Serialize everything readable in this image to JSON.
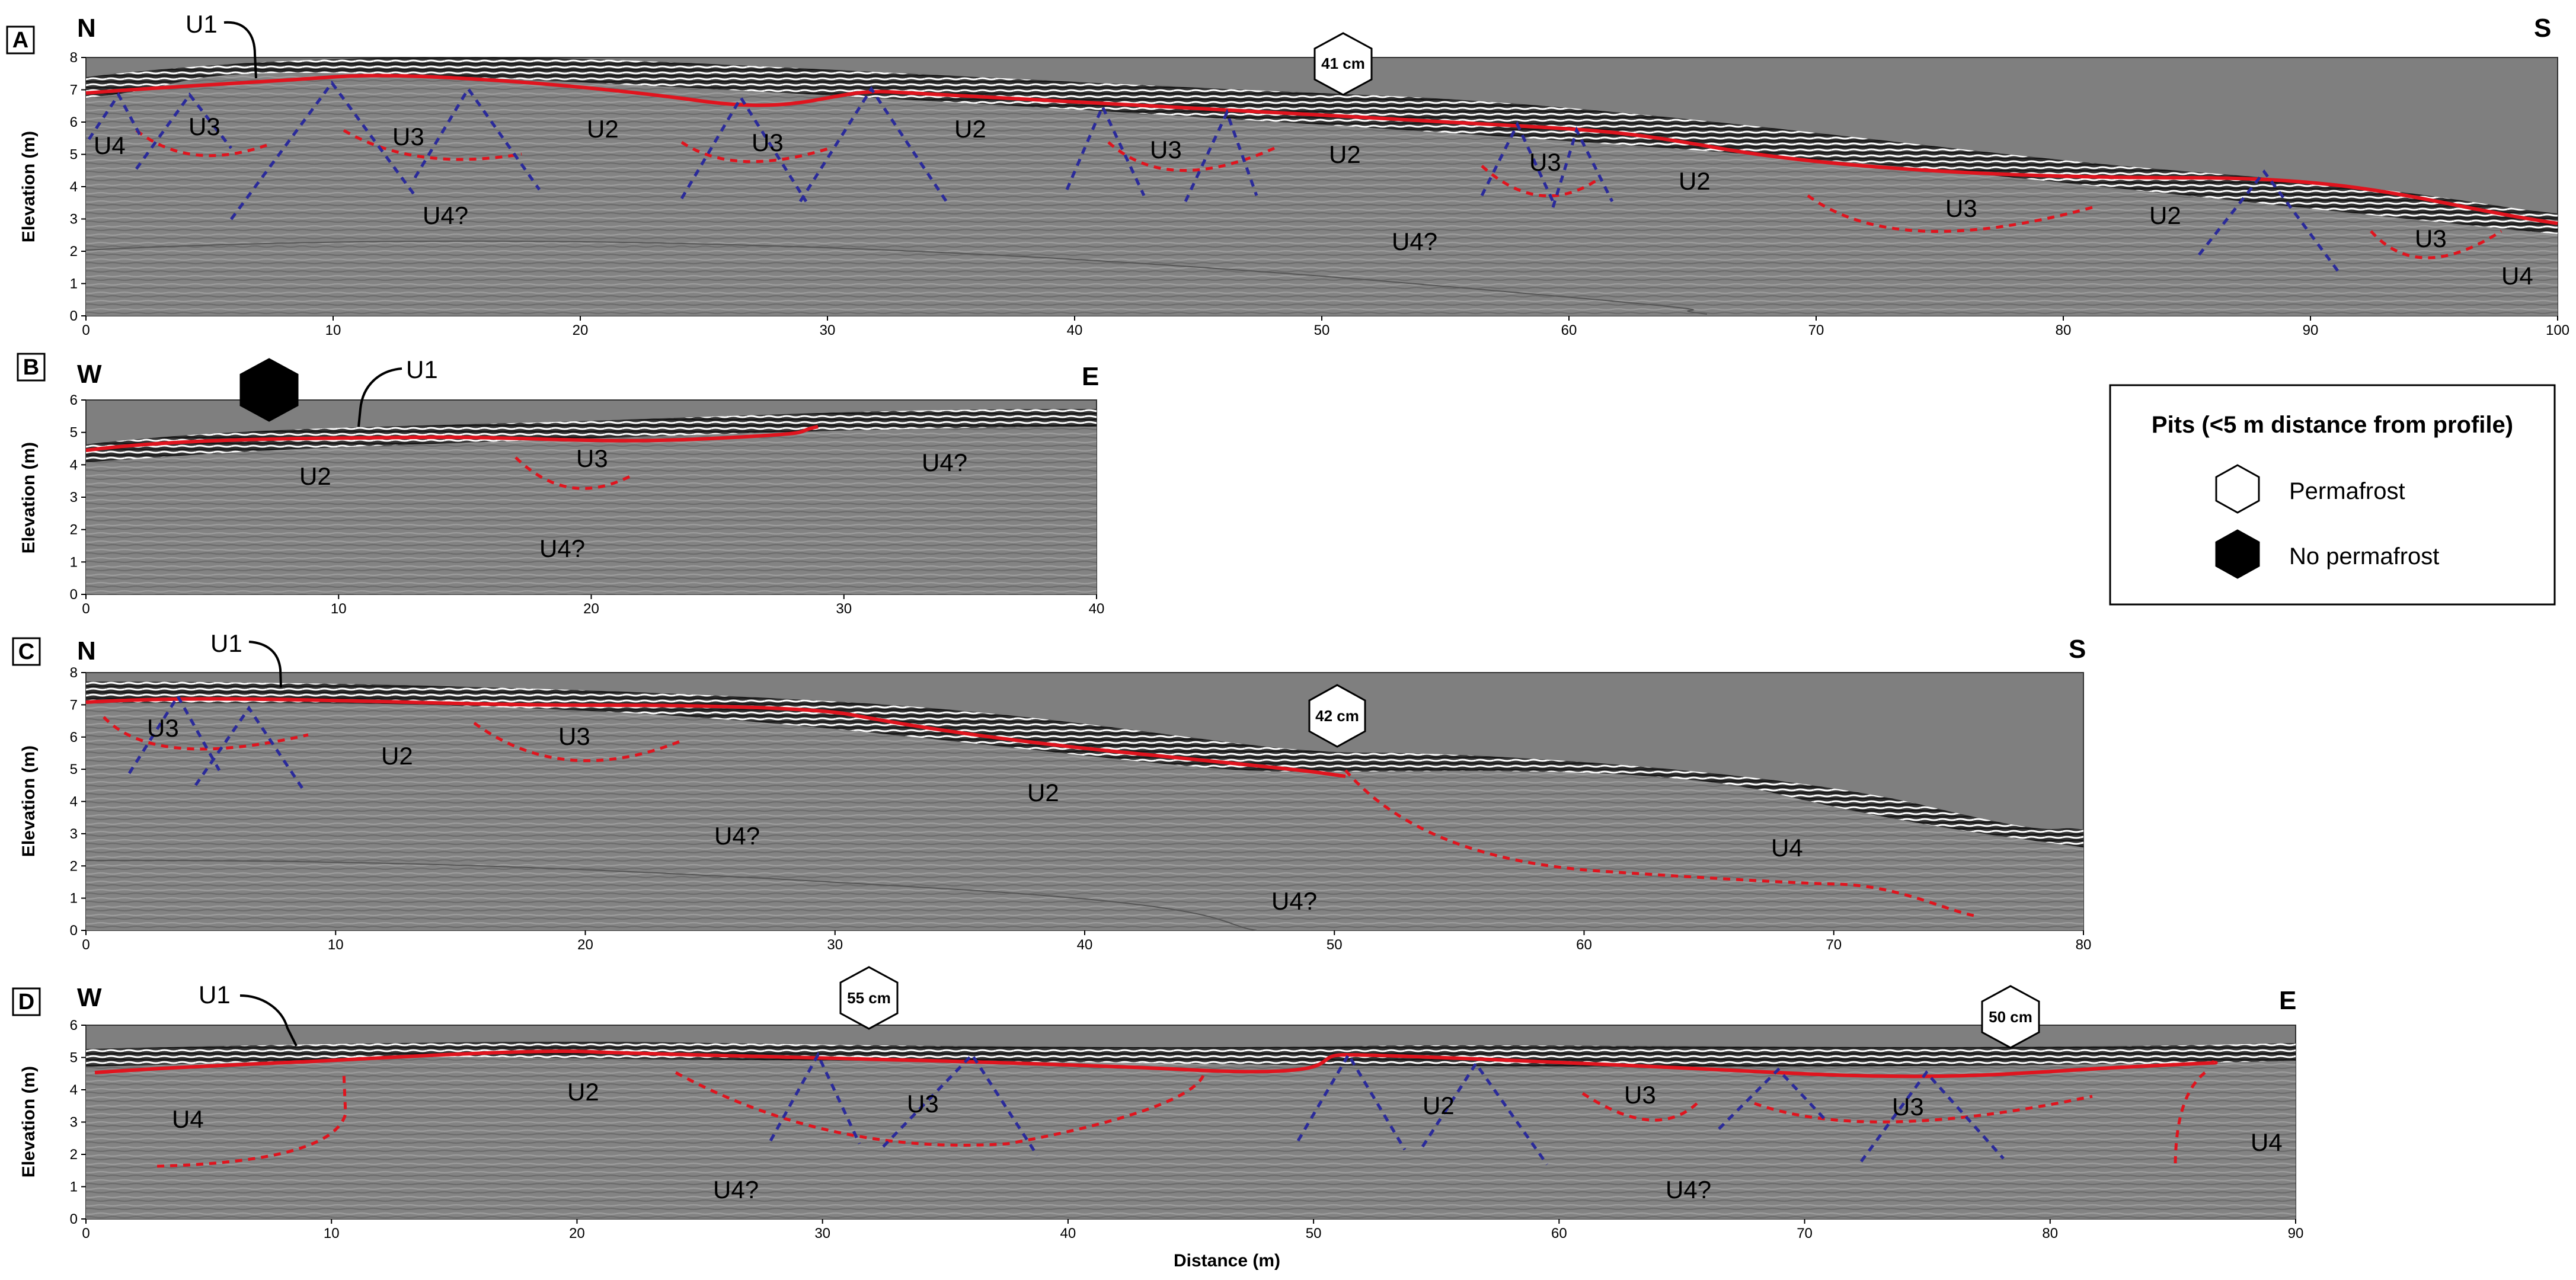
{
  "panels": [
    {
      "letter": "A",
      "dir_left": "N",
      "dir_right": "S",
      "ylabel": "Elevation (m)",
      "xticks": [
        "0",
        "10",
        "20",
        "30",
        "40",
        "50",
        "60",
        "70",
        "80",
        "90",
        "100"
      ],
      "yticks": [
        "0",
        "1",
        "2",
        "3",
        "4",
        "5",
        "6",
        "7",
        "8"
      ],
      "units": [
        {
          "t": "U4"
        },
        {
          "t": "U3"
        },
        {
          "t": "U3"
        },
        {
          "t": "U2"
        },
        {
          "t": "U3"
        },
        {
          "t": "U2"
        },
        {
          "t": "U3"
        },
        {
          "t": "U2"
        },
        {
          "t": "U3"
        },
        {
          "t": "U2"
        },
        {
          "t": "U3"
        },
        {
          "t": "U2"
        },
        {
          "t": "U3"
        },
        {
          "t": "U4"
        },
        {
          "t": "U4?"
        },
        {
          "t": "U4?"
        }
      ],
      "u1": "U1",
      "pit": {
        "label": "41 cm",
        "type": "Permafrost"
      }
    },
    {
      "letter": "B",
      "dir_left": "W",
      "dir_right": "E",
      "ylabel": "Elevation (m)",
      "xticks": [
        "0",
        "10",
        "20",
        "30",
        "40"
      ],
      "yticks": [
        "0",
        "1",
        "2",
        "3",
        "4",
        "5",
        "6"
      ],
      "units": [
        {
          "t": "U2"
        },
        {
          "t": "U3"
        },
        {
          "t": "U4?"
        },
        {
          "t": "U4?"
        }
      ],
      "u1": "U1",
      "pit": {
        "label": "",
        "type": "No permafrost"
      }
    },
    {
      "letter": "C",
      "dir_left": "N",
      "dir_right": "S",
      "ylabel": "Elevation (m)",
      "xticks": [
        "0",
        "10",
        "20",
        "30",
        "40",
        "50",
        "60",
        "70",
        "80"
      ],
      "yticks": [
        "0",
        "1",
        "2",
        "3",
        "4",
        "5",
        "6",
        "7",
        "8"
      ],
      "units": [
        {
          "t": "U3"
        },
        {
          "t": "U2"
        },
        {
          "t": "U3"
        },
        {
          "t": "U4?"
        },
        {
          "t": "U2"
        },
        {
          "t": "U4"
        },
        {
          "t": "U4?"
        }
      ],
      "u1": "U1",
      "pit": {
        "label": "42 cm",
        "type": "Permafrost"
      }
    },
    {
      "letter": "D",
      "dir_left": "W",
      "dir_right": "E",
      "ylabel": "Elevation (m)",
      "xticks": [
        "0",
        "10",
        "20",
        "30",
        "40",
        "50",
        "60",
        "70",
        "80",
        "90"
      ],
      "yticks": [
        "0",
        "1",
        "2",
        "3",
        "4",
        "5",
        "6"
      ],
      "units": [
        {
          "t": "U4"
        },
        {
          "t": "U2"
        },
        {
          "t": "U3"
        },
        {
          "t": "U2"
        },
        {
          "t": "U3"
        },
        {
          "t": "U3"
        },
        {
          "t": "U4"
        },
        {
          "t": "U4?"
        },
        {
          "t": "U4?"
        }
      ],
      "u1": "U1",
      "pits": [
        {
          "label": "55 cm",
          "type": "Permafrost"
        },
        {
          "label": "50 cm",
          "type": "Permafrost"
        }
      ],
      "xlabel": "Distance (m)"
    }
  ],
  "legend": {
    "title": "Pits (<5 m distance from profile)",
    "items": [
      {
        "label": "Permafrost",
        "fill": "#ffffff"
      },
      {
        "label": "No permafrost",
        "fill": "#000000"
      }
    ]
  },
  "colors": {
    "background": "#808080",
    "interface": "#e0141e",
    "wedge": "#2a2a9a",
    "gridline": "#555555"
  }
}
